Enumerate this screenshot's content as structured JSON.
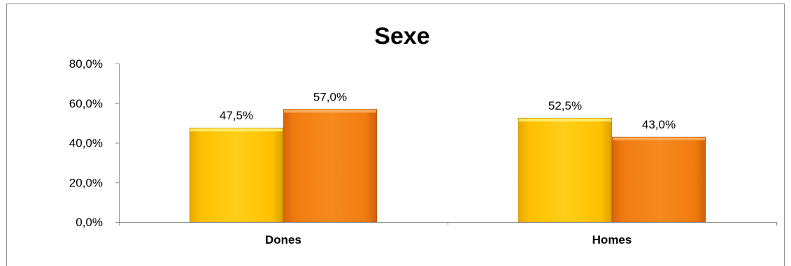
{
  "chart_data": {
    "type": "bar",
    "title": "Sexe",
    "xlabel": "",
    "ylabel": "",
    "categories": [
      "Dones",
      "Homes"
    ],
    "series": [
      {
        "values": [
          47.5,
          52.5
        ],
        "labels": [
          "47,5%",
          "52,5%"
        ],
        "color": "#FFC000"
      },
      {
        "values": [
          57.0,
          43.0
        ],
        "labels": [
          "57,0%",
          "43,0%"
        ],
        "color": "#F07C10"
      }
    ],
    "ylim": [
      0,
      80
    ],
    "yticks": [
      0,
      20,
      40,
      60,
      80
    ],
    "ytick_labels": [
      "0,0%",
      "20,0%",
      "40,0%",
      "60,0%",
      "80,0%"
    ],
    "grid": false,
    "legend": "none"
  }
}
